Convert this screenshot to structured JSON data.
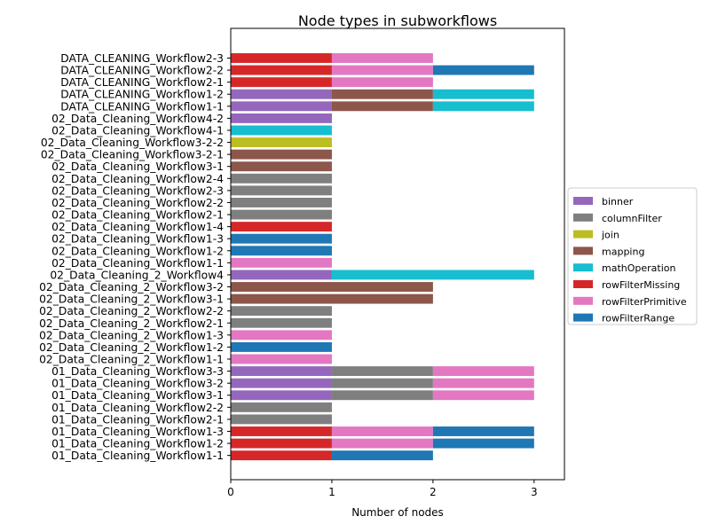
{
  "chart_data": {
    "type": "bar",
    "orientation": "horizontal",
    "stacked": true,
    "title": "Node types in subworkflows",
    "xlabel": "Number of nodes",
    "ylabel": "",
    "xlim": [
      0,
      3.3
    ],
    "xticks": [
      "0",
      "1",
      "2",
      "3"
    ],
    "grid": false,
    "legend_position": "right",
    "legend": [
      {
        "name": "binner",
        "color": "#9467bd"
      },
      {
        "name": "columnFilter",
        "color": "#7f7f7f"
      },
      {
        "name": "join",
        "color": "#bcbd22"
      },
      {
        "name": "mapping",
        "color": "#8c564b"
      },
      {
        "name": "mathOperation",
        "color": "#17becf"
      },
      {
        "name": "rowFilterMissing",
        "color": "#d62728"
      },
      {
        "name": "rowFilterPrimitive",
        "color": "#e377c2"
      },
      {
        "name": "rowFilterRange",
        "color": "#1f77b4"
      }
    ],
    "categories": [
      "DATA_CLEANING_Workflow2-3",
      "DATA_CLEANING_Workflow2-2",
      "DATA_CLEANING_Workflow2-1",
      "DATA_CLEANING_Workflow1-2",
      "DATA_CLEANING_Workflow1-1",
      "02_Data_Cleaning_Workflow4-2",
      "02_Data_Cleaning_Workflow4-1",
      "02_Data_Cleaning_Workflow3-2-2",
      "02_Data_Cleaning_Workflow3-2-1",
      "02_Data_Cleaning_Workflow3-1",
      "02_Data_Cleaning_Workflow2-4",
      "02_Data_Cleaning_Workflow2-3",
      "02_Data_Cleaning_Workflow2-2",
      "02_Data_Cleaning_Workflow2-1",
      "02_Data_Cleaning_Workflow1-4",
      "02_Data_Cleaning_Workflow1-3",
      "02_Data_Cleaning_Workflow1-2",
      "02_Data_Cleaning_Workflow1-1",
      "02_Data_Cleaning_2_Workflow4",
      "02_Data_Cleaning_2_Workflow3-2",
      "02_Data_Cleaning_2_Workflow3-1",
      "02_Data_Cleaning_2_Workflow2-2",
      "02_Data_Cleaning_2_Workflow2-1",
      "02_Data_Cleaning_2_Workflow1-3",
      "02_Data_Cleaning_2_Workflow1-2",
      "02_Data_Cleaning_2_Workflow1-1",
      "01_Data_Cleaning_Workflow3-3",
      "01_Data_Cleaning_Workflow3-2",
      "01_Data_Cleaning_Workflow3-1",
      "01_Data_Cleaning_Workflow2-2",
      "01_Data_Cleaning_Workflow2-1",
      "01_Data_Cleaning_Workflow1-3",
      "01_Data_Cleaning_Workflow1-2",
      "01_Data_Cleaning_Workflow1-1"
    ],
    "stacks": [
      [
        {
          "type": "rowFilterMissing",
          "value": 1
        },
        {
          "type": "rowFilterPrimitive",
          "value": 1
        }
      ],
      [
        {
          "type": "rowFilterMissing",
          "value": 1
        },
        {
          "type": "rowFilterPrimitive",
          "value": 1
        },
        {
          "type": "rowFilterRange",
          "value": 1
        }
      ],
      [
        {
          "type": "rowFilterMissing",
          "value": 1
        },
        {
          "type": "rowFilterPrimitive",
          "value": 1
        }
      ],
      [
        {
          "type": "binner",
          "value": 1
        },
        {
          "type": "mapping",
          "value": 1
        },
        {
          "type": "mathOperation",
          "value": 1
        }
      ],
      [
        {
          "type": "binner",
          "value": 1
        },
        {
          "type": "mapping",
          "value": 1
        },
        {
          "type": "mathOperation",
          "value": 1
        }
      ],
      [
        {
          "type": "binner",
          "value": 1
        }
      ],
      [
        {
          "type": "mathOperation",
          "value": 1
        }
      ],
      [
        {
          "type": "join",
          "value": 1
        }
      ],
      [
        {
          "type": "mapping",
          "value": 1
        }
      ],
      [
        {
          "type": "mapping",
          "value": 1
        }
      ],
      [
        {
          "type": "columnFilter",
          "value": 1
        }
      ],
      [
        {
          "type": "columnFilter",
          "value": 1
        }
      ],
      [
        {
          "type": "columnFilter",
          "value": 1
        }
      ],
      [
        {
          "type": "columnFilter",
          "value": 1
        }
      ],
      [
        {
          "type": "rowFilterMissing",
          "value": 1
        }
      ],
      [
        {
          "type": "rowFilterRange",
          "value": 1
        }
      ],
      [
        {
          "type": "rowFilterRange",
          "value": 1
        }
      ],
      [
        {
          "type": "rowFilterPrimitive",
          "value": 1
        }
      ],
      [
        {
          "type": "binner",
          "value": 1
        },
        {
          "type": "mathOperation",
          "value": 2
        }
      ],
      [
        {
          "type": "mapping",
          "value": 2
        }
      ],
      [
        {
          "type": "mapping",
          "value": 2
        }
      ],
      [
        {
          "type": "columnFilter",
          "value": 1
        }
      ],
      [
        {
          "type": "columnFilter",
          "value": 1
        }
      ],
      [
        {
          "type": "rowFilterPrimitive",
          "value": 1
        }
      ],
      [
        {
          "type": "rowFilterRange",
          "value": 1
        }
      ],
      [
        {
          "type": "rowFilterPrimitive",
          "value": 1
        }
      ],
      [
        {
          "type": "binner",
          "value": 1
        },
        {
          "type": "columnFilter",
          "value": 1
        },
        {
          "type": "rowFilterPrimitive",
          "value": 1
        }
      ],
      [
        {
          "type": "binner",
          "value": 1
        },
        {
          "type": "columnFilter",
          "value": 1
        },
        {
          "type": "rowFilterPrimitive",
          "value": 1
        }
      ],
      [
        {
          "type": "binner",
          "value": 1
        },
        {
          "type": "columnFilter",
          "value": 1
        },
        {
          "type": "rowFilterPrimitive",
          "value": 1
        }
      ],
      [
        {
          "type": "columnFilter",
          "value": 1
        }
      ],
      [
        {
          "type": "columnFilter",
          "value": 1
        }
      ],
      [
        {
          "type": "rowFilterMissing",
          "value": 1
        },
        {
          "type": "rowFilterPrimitive",
          "value": 1
        },
        {
          "type": "rowFilterRange",
          "value": 1
        }
      ],
      [
        {
          "type": "rowFilterMissing",
          "value": 1
        },
        {
          "type": "rowFilterPrimitive",
          "value": 1
        },
        {
          "type": "rowFilterRange",
          "value": 1
        }
      ],
      [
        {
          "type": "rowFilterMissing",
          "value": 1
        },
        {
          "type": "rowFilterRange",
          "value": 1
        }
      ]
    ]
  }
}
